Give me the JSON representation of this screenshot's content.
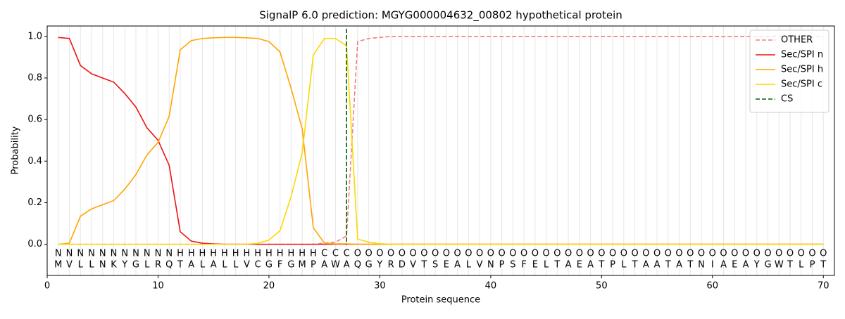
{
  "chart_data": {
    "type": "line",
    "title": "SignalP 6.0 prediction: MGYG000004632_00802 hypothetical protein",
    "x_label": "Protein sequence",
    "y_label": "Probability",
    "x": [
      1,
      2,
      3,
      4,
      5,
      6,
      7,
      8,
      9,
      10,
      11,
      12,
      13,
      14,
      15,
      16,
      17,
      18,
      19,
      20,
      21,
      22,
      23,
      24,
      25,
      26,
      27,
      28,
      29,
      30,
      31,
      32,
      33,
      34,
      35,
      36,
      37,
      38,
      39,
      40,
      41,
      42,
      43,
      44,
      45,
      46,
      47,
      48,
      49,
      50,
      51,
      52,
      53,
      54,
      55,
      56,
      57,
      58,
      59,
      60,
      61,
      62,
      63,
      64,
      65,
      66,
      67,
      68,
      69,
      70
    ],
    "sequence": [
      "M",
      "V",
      "L",
      "L",
      "N",
      "K",
      "Y",
      "G",
      "L",
      "R",
      "Q",
      "T",
      "A",
      "L",
      "A",
      "L",
      "L",
      "V",
      "C",
      "G",
      "F",
      "G",
      "M",
      "P",
      "A",
      "W",
      "A",
      "Q",
      "G",
      "Y",
      "R",
      "D",
      "V",
      "T",
      "S",
      "E",
      "A",
      "L",
      "V",
      "N",
      "P",
      "S",
      "F",
      "E",
      "L",
      "T",
      "A",
      "E",
      "A",
      "T",
      "P",
      "L",
      "T",
      "A",
      "A",
      "T",
      "A",
      "T",
      "N",
      "I",
      "A",
      "E",
      "A",
      "Y",
      "G",
      "W",
      "T",
      "L",
      "P",
      "T"
    ],
    "regions": [
      "N",
      "N",
      "N",
      "N",
      "N",
      "N",
      "N",
      "N",
      "N",
      "N",
      "N",
      "H",
      "H",
      "H",
      "H",
      "H",
      "H",
      "H",
      "H",
      "H",
      "H",
      "H",
      "H",
      "H",
      "C",
      "C",
      "C",
      "O",
      "O",
      "O",
      "O",
      "O",
      "O",
      "O",
      "O",
      "O",
      "O",
      "O",
      "O",
      "O",
      "O",
      "O",
      "O",
      "O",
      "O",
      "O",
      "O",
      "O",
      "O",
      "O",
      "O",
      "O",
      "O",
      "O",
      "O",
      "O",
      "O",
      "O",
      "O",
      "O",
      "O",
      "O",
      "O",
      "O",
      "O",
      "O",
      "O",
      "O",
      "O",
      "O"
    ],
    "region_colors": {
      "N": "#ee1111",
      "H": "#ffa500",
      "C": "#ffd700",
      "O": "#808080"
    },
    "series": [
      {
        "name": "OTHER",
        "color": "#f08080",
        "dashed": true,
        "values": [
          0,
          0,
          0,
          0,
          0,
          0,
          0,
          0,
          0,
          0,
          0,
          0,
          0,
          0,
          0,
          0,
          0,
          0,
          0,
          0,
          0,
          0,
          0,
          0,
          0.005,
          0.01,
          0.04,
          0.975,
          0.99,
          0.995,
          1,
          1,
          1,
          1,
          1,
          1,
          1,
          1,
          1,
          1,
          1,
          1,
          1,
          1,
          1,
          1,
          1,
          1,
          1,
          1,
          1,
          1,
          1,
          1,
          1,
          1,
          1,
          1,
          1,
          1,
          1,
          1,
          1,
          1,
          1,
          1,
          1,
          1,
          1,
          1
        ]
      },
      {
        "name": "Sec/SPI n",
        "color": "#ee1111",
        "dashed": false,
        "values": [
          0.995,
          0.99,
          0.86,
          0.82,
          0.8,
          0.78,
          0.725,
          0.66,
          0.56,
          0.5,
          0.38,
          0.06,
          0.015,
          0.005,
          0.002,
          0,
          0,
          0,
          0,
          0,
          0,
          0,
          0,
          0,
          0,
          0,
          0,
          0,
          0,
          0,
          0,
          0,
          0,
          0,
          0,
          0,
          0,
          0,
          0,
          0,
          0,
          0,
          0,
          0,
          0,
          0,
          0,
          0,
          0,
          0,
          0,
          0,
          0,
          0,
          0,
          0,
          0,
          0,
          0,
          0,
          0,
          0,
          0,
          0,
          0,
          0,
          0,
          0,
          0,
          0
        ]
      },
      {
        "name": "Sec/SPI h",
        "color": "#ffa500",
        "dashed": false,
        "values": [
          0,
          0.005,
          0.135,
          0.17,
          0.19,
          0.21,
          0.265,
          0.335,
          0.43,
          0.49,
          0.615,
          0.935,
          0.98,
          0.99,
          0.993,
          0.995,
          0.995,
          0.993,
          0.99,
          0.975,
          0.925,
          0.75,
          0.555,
          0.08,
          0.005,
          0.002,
          0.002,
          0,
          0,
          0,
          0,
          0,
          0,
          0,
          0,
          0,
          0,
          0,
          0,
          0,
          0,
          0,
          0,
          0,
          0,
          0,
          0,
          0,
          0,
          0,
          0,
          0,
          0,
          0,
          0,
          0,
          0,
          0,
          0,
          0,
          0,
          0,
          0,
          0,
          0,
          0,
          0,
          0,
          0,
          0
        ]
      },
      {
        "name": "Sec/SPI c",
        "color": "#ffd700",
        "dashed": false,
        "values": [
          0,
          0,
          0,
          0,
          0,
          0,
          0,
          0,
          0,
          0,
          0,
          0,
          0,
          0,
          0,
          0,
          0,
          0,
          0.005,
          0.02,
          0.065,
          0.23,
          0.44,
          0.91,
          0.99,
          0.99,
          0.955,
          0.025,
          0.01,
          0.003,
          0,
          0,
          0,
          0,
          0,
          0,
          0,
          0,
          0,
          0,
          0,
          0,
          0,
          0,
          0,
          0,
          0,
          0,
          0,
          0,
          0,
          0,
          0,
          0,
          0,
          0,
          0,
          0,
          0,
          0,
          0,
          0,
          0,
          0,
          0,
          0,
          0,
          0,
          0,
          0
        ]
      }
    ],
    "cs": {
      "name": "CS",
      "value": 27,
      "color": "#006400"
    },
    "xlim": [
      0,
      71
    ],
    "ylim": [
      -0.15,
      1.05
    ],
    "xticks": [
      0,
      10,
      20,
      30,
      40,
      50,
      60,
      70
    ],
    "yticks": [
      {
        "value": 0,
        "label": "0.0"
      },
      0.2,
      0.4,
      0.6,
      0.8,
      {
        "value": 1,
        "label": "1.0"
      }
    ],
    "legend": "upper right"
  }
}
